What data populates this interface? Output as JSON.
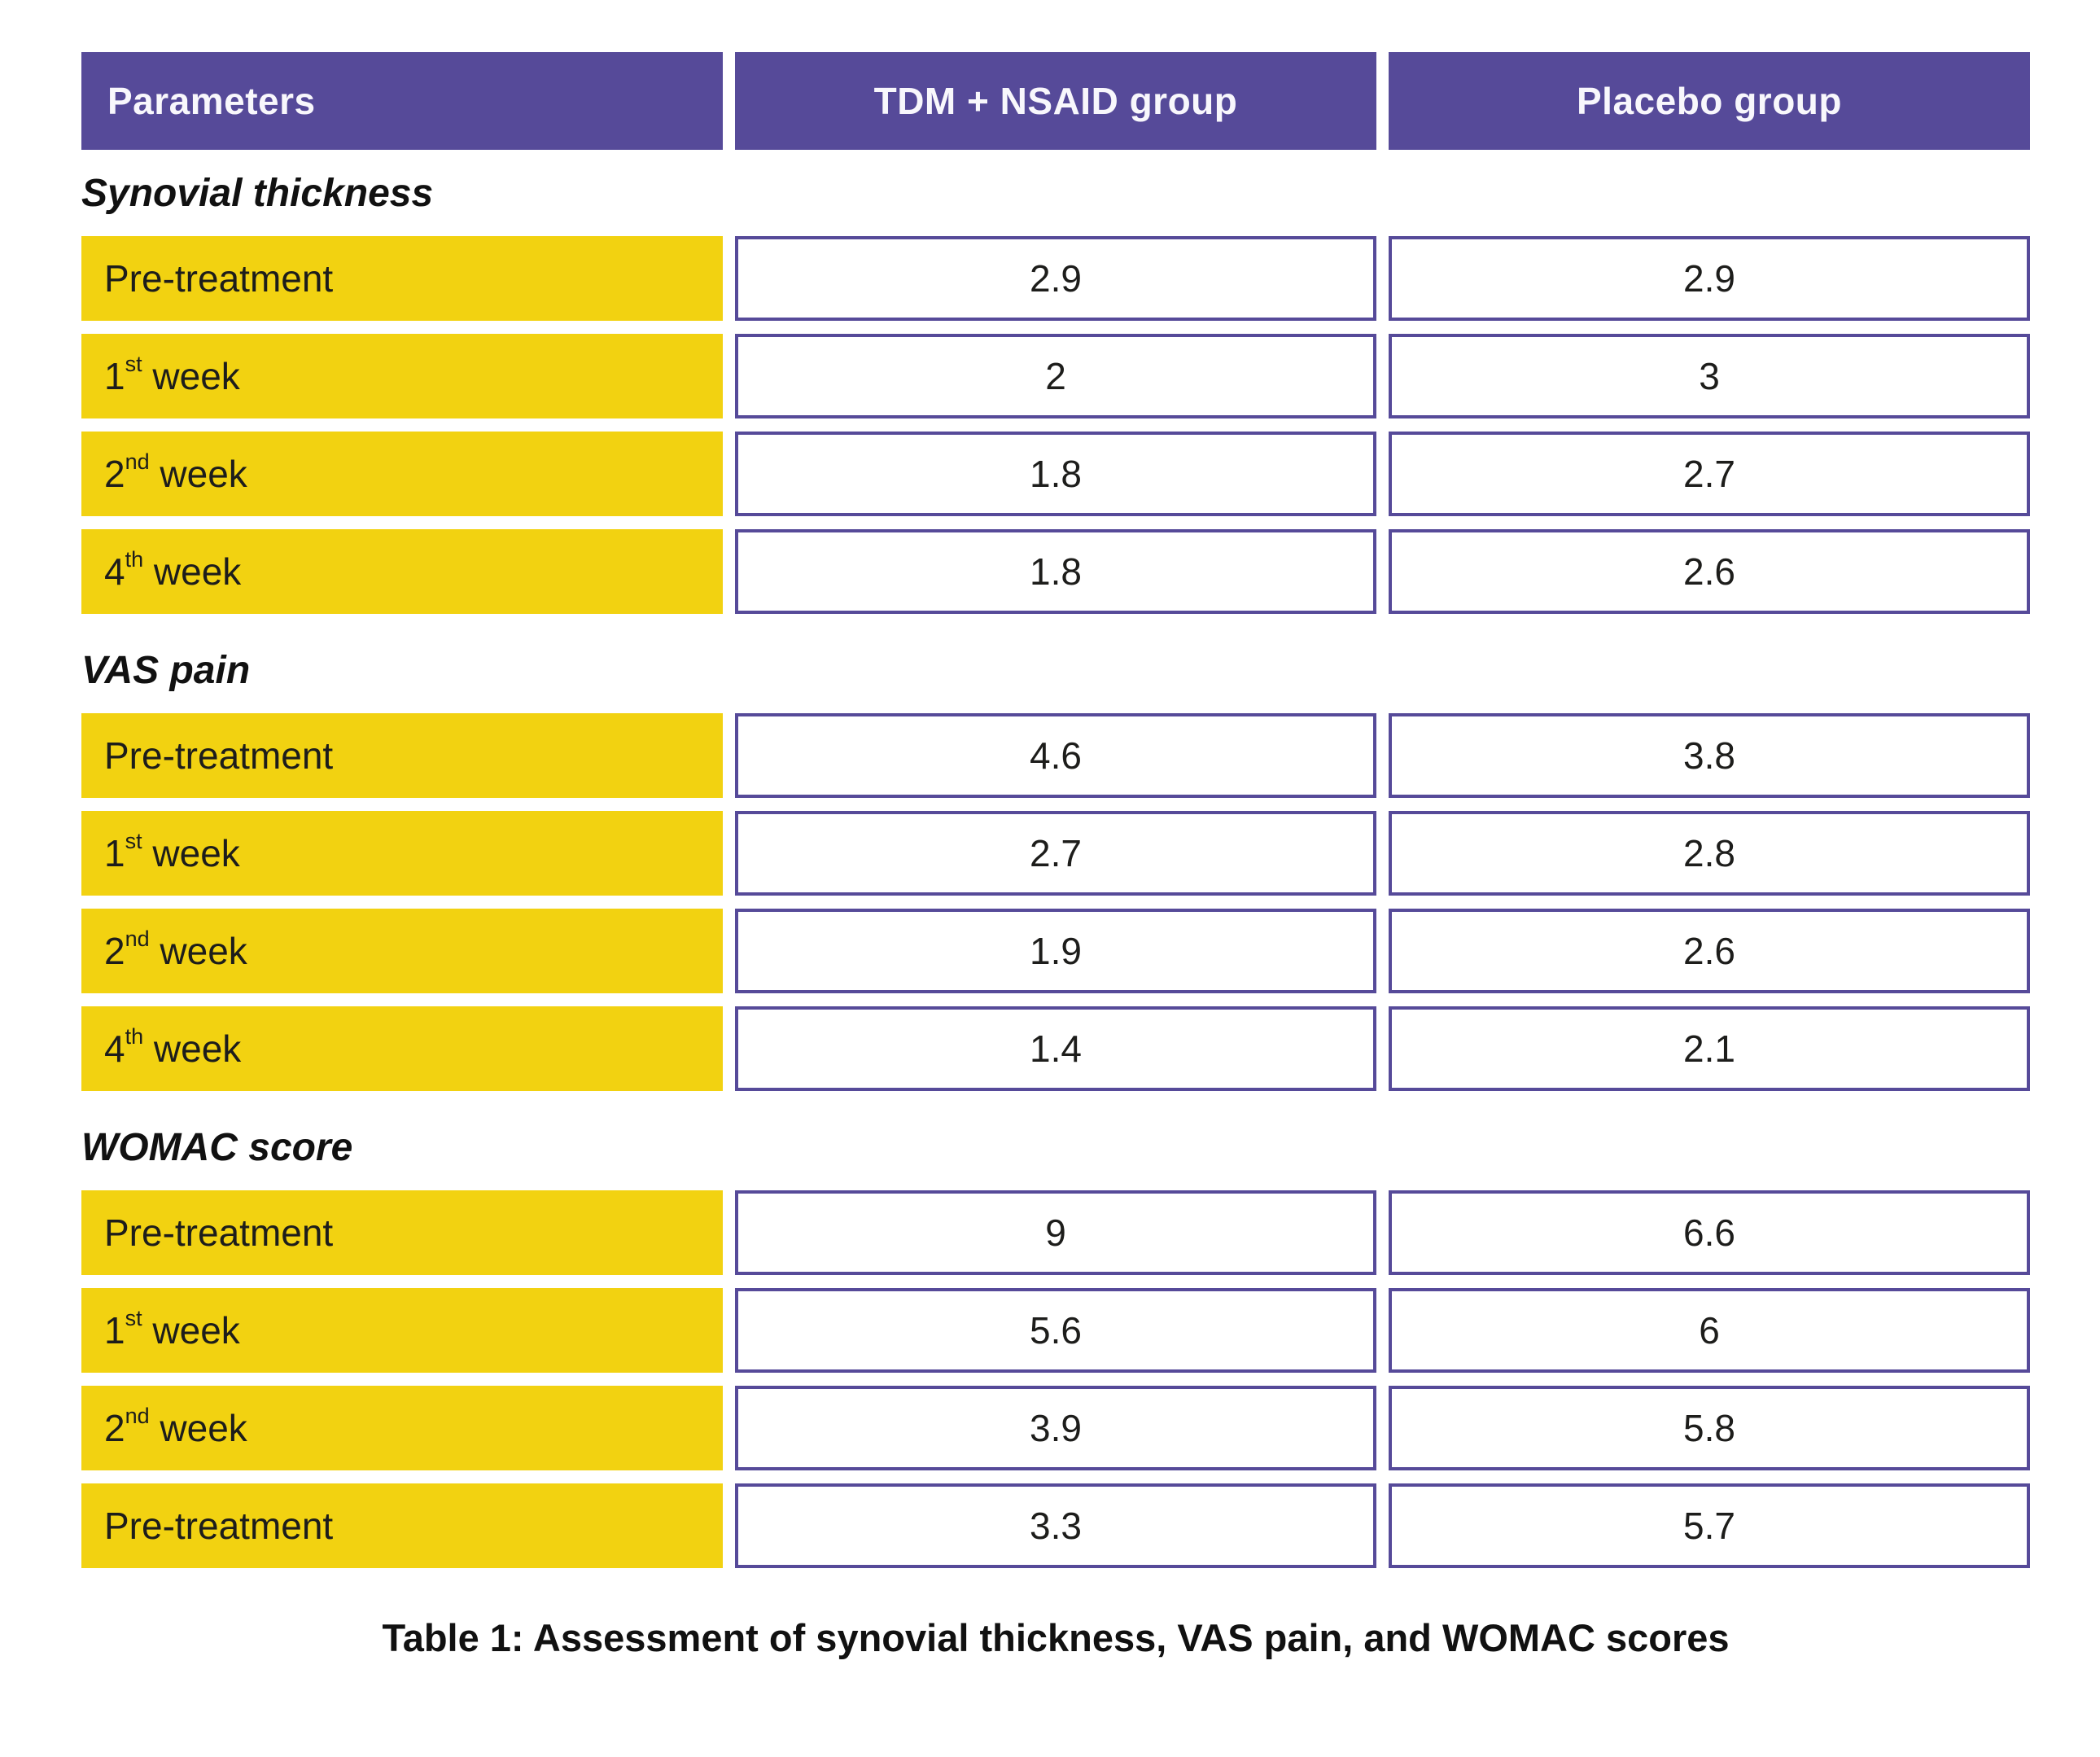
{
  "colors": {
    "header_purple": "#564A99",
    "cell_border_purple": "#564A99",
    "label_yellow": "#F2D211",
    "header_text": "#FFFFFF",
    "body_text": "#1D1D1B"
  },
  "table": {
    "columns": [
      "Parameters",
      "TDM + NSAID group",
      "Placebo group"
    ],
    "sections": [
      {
        "title": "Synovial thickness",
        "rows": [
          {
            "label": {
              "prefix": "Pre-treatment",
              "sup": "",
              "suffix": ""
            },
            "values": [
              "2.9",
              "2.9"
            ]
          },
          {
            "label": {
              "prefix": "1",
              "sup": "st",
              "suffix": " week"
            },
            "values": [
              "2",
              "3"
            ]
          },
          {
            "label": {
              "prefix": "2",
              "sup": "nd",
              "suffix": " week"
            },
            "values": [
              "1.8",
              "2.7"
            ]
          },
          {
            "label": {
              "prefix": "4",
              "sup": "th",
              "suffix": " week"
            },
            "values": [
              "1.8",
              "2.6"
            ]
          }
        ]
      },
      {
        "title": "VAS pain",
        "rows": [
          {
            "label": {
              "prefix": "Pre-treatment",
              "sup": "",
              "suffix": ""
            },
            "values": [
              "4.6",
              "3.8"
            ]
          },
          {
            "label": {
              "prefix": "1",
              "sup": "st",
              "suffix": " week"
            },
            "values": [
              "2.7",
              "2.8"
            ]
          },
          {
            "label": {
              "prefix": "2",
              "sup": "nd",
              "suffix": " week"
            },
            "values": [
              "1.9",
              "2.6"
            ]
          },
          {
            "label": {
              "prefix": "4",
              "sup": "th",
              "suffix": " week"
            },
            "values": [
              "1.4",
              "2.1"
            ]
          }
        ]
      },
      {
        "title": "WOMAC score",
        "rows": [
          {
            "label": {
              "prefix": "Pre-treatment",
              "sup": "",
              "suffix": ""
            },
            "values": [
              "9",
              "6.6"
            ]
          },
          {
            "label": {
              "prefix": "1",
              "sup": "st",
              "suffix": " week"
            },
            "values": [
              "5.6",
              "6"
            ]
          },
          {
            "label": {
              "prefix": "2",
              "sup": "nd",
              "suffix": " week"
            },
            "values": [
              "3.9",
              "5.8"
            ]
          },
          {
            "label": {
              "prefix": "Pre-treatment",
              "sup": "",
              "suffix": ""
            },
            "values": [
              "3.3",
              "5.7"
            ]
          }
        ]
      }
    ]
  },
  "caption": "Table 1: Assessment of synovial thickness, VAS pain, and WOMAC scores",
  "chart_data": {
    "type": "table",
    "title": "Table 1: Assessment of synovial thickness, VAS pain, and WOMAC scores",
    "columns": [
      "Parameters",
      "TDM + NSAID group",
      "Placebo group"
    ],
    "rows": [
      {
        "section": "Synovial thickness",
        "parameter": "Pre-treatment",
        "tdm_nsaid": 2.9,
        "placebo": 2.9
      },
      {
        "section": "Synovial thickness",
        "parameter": "1st week",
        "tdm_nsaid": 2,
        "placebo": 3
      },
      {
        "section": "Synovial thickness",
        "parameter": "2nd week",
        "tdm_nsaid": 1.8,
        "placebo": 2.7
      },
      {
        "section": "Synovial thickness",
        "parameter": "4th week",
        "tdm_nsaid": 1.8,
        "placebo": 2.6
      },
      {
        "section": "VAS pain",
        "parameter": "Pre-treatment",
        "tdm_nsaid": 4.6,
        "placebo": 3.8
      },
      {
        "section": "VAS pain",
        "parameter": "1st week",
        "tdm_nsaid": 2.7,
        "placebo": 2.8
      },
      {
        "section": "VAS pain",
        "parameter": "2nd week",
        "tdm_nsaid": 1.9,
        "placebo": 2.6
      },
      {
        "section": "VAS pain",
        "parameter": "4th week",
        "tdm_nsaid": 1.4,
        "placebo": 2.1
      },
      {
        "section": "WOMAC score",
        "parameter": "Pre-treatment",
        "tdm_nsaid": 9,
        "placebo": 6.6
      },
      {
        "section": "WOMAC score",
        "parameter": "1st week",
        "tdm_nsaid": 5.6,
        "placebo": 6
      },
      {
        "section": "WOMAC score",
        "parameter": "2nd week",
        "tdm_nsaid": 3.9,
        "placebo": 5.8
      },
      {
        "section": "WOMAC score",
        "parameter": "Pre-treatment",
        "tdm_nsaid": 3.3,
        "placebo": 5.7
      }
    ]
  }
}
